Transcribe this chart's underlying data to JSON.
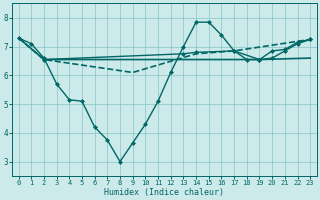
{
  "xlabel": "Humidex (Indice chaleur)",
  "bg_color": "#cceaea",
  "grid_color": "#88c4c4",
  "line_color": "#006666",
  "xlim": [
    -0.5,
    23.5
  ],
  "ylim": [
    2.5,
    8.5
  ],
  "xticks": [
    0,
    1,
    2,
    3,
    4,
    5,
    6,
    7,
    8,
    9,
    10,
    11,
    12,
    13,
    14,
    15,
    16,
    17,
    18,
    19,
    20,
    21,
    22,
    23
  ],
  "yticks": [
    3,
    4,
    5,
    6,
    7,
    8
  ],
  "series": [
    {
      "x": [
        0,
        1,
        2,
        3,
        4,
        5,
        6,
        7,
        8,
        9,
        10,
        11,
        12,
        13,
        14,
        15,
        16,
        17,
        18,
        19,
        20,
        21,
        22,
        23
      ],
      "y": [
        7.3,
        7.1,
        6.6,
        5.7,
        5.15,
        5.1,
        4.2,
        3.75,
        3.0,
        3.65,
        4.3,
        5.1,
        6.1,
        7.0,
        7.85,
        7.85,
        7.4,
        6.85,
        6.55,
        6.55,
        6.85,
        6.9,
        7.15,
        7.25
      ],
      "marker": "D",
      "ms": 2.0,
      "lw": 1.0,
      "dashed": false
    },
    {
      "x": [
        0,
        2,
        14,
        17,
        19,
        23
      ],
      "y": [
        7.3,
        6.55,
        6.55,
        6.55,
        6.55,
        6.6
      ],
      "marker": null,
      "ms": 0,
      "lw": 1.2,
      "dashed": false
    },
    {
      "x": [
        2,
        13,
        14,
        17,
        19,
        20,
        21,
        22,
        23
      ],
      "y": [
        6.55,
        6.75,
        6.8,
        6.85,
        6.55,
        6.6,
        6.85,
        7.1,
        7.25
      ],
      "marker": "D",
      "ms": 2.0,
      "lw": 1.0,
      "dashed": false
    },
    {
      "x": [
        0,
        2,
        9,
        14,
        17,
        23
      ],
      "y": [
        7.3,
        6.55,
        6.1,
        6.75,
        6.85,
        7.25
      ],
      "marker": null,
      "ms": 0,
      "lw": 1.2,
      "dashed": true
    }
  ]
}
